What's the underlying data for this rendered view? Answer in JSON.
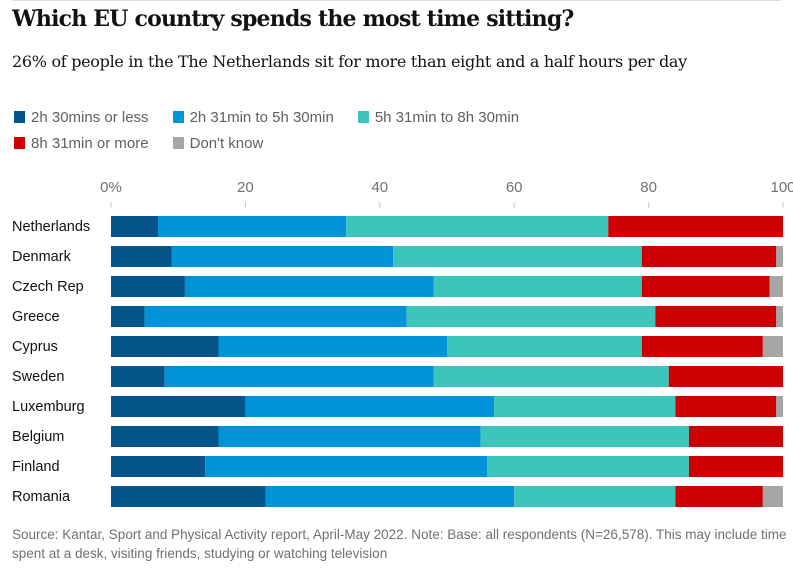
{
  "header": {
    "title": "Which EU country spends the most time sitting?",
    "subtitle": "26% of people in the The Netherlands sit for more than eight and a half hours per day"
  },
  "footer": {
    "source": "Source: Kantar, Sport and Physical Activity report, April-May 2022. Note: Base: all respondents (N=26,578). This may include time spent at a desk, visiting friends, studying or watching television"
  },
  "chart_data": {
    "type": "bar",
    "orientation": "horizontal",
    "stacked": true,
    "title": "Which EU country spends the most time sitting?",
    "subtitle": "26% of people in the The Netherlands sit for more than eight and a half hours per day",
    "xlabel": "",
    "ylabel": "",
    "xlim": [
      0,
      100
    ],
    "x_ticks": [
      0,
      20,
      40,
      60,
      80,
      100
    ],
    "x_tick_labels": [
      "0%",
      "20",
      "40",
      "60",
      "80",
      "100"
    ],
    "grid": false,
    "legend_position": "top-left",
    "categories": [
      "Netherlands",
      "Denmark",
      "Czech Rep",
      "Greece",
      "Cyprus",
      "Sweden",
      "Luxemburg",
      "Belgium",
      "Finland",
      "Romania"
    ],
    "series": [
      {
        "name": "2h 30mins or less",
        "color": "#05558a",
        "values": [
          7,
          9,
          11,
          5,
          16,
          8,
          20,
          16,
          14,
          23
        ]
      },
      {
        "name": "2h 31min to 5h 30min",
        "color": "#0093d8",
        "values": [
          28,
          33,
          37,
          39,
          34,
          40,
          37,
          39,
          42,
          37
        ]
      },
      {
        "name": "5h 31min to 8h 30min",
        "color": "#3cc5bb",
        "values": [
          39,
          37,
          31,
          37,
          29,
          35,
          27,
          31,
          30,
          24
        ]
      },
      {
        "name": "8h 31min or more",
        "color": "#cc0000",
        "values": [
          26,
          20,
          19,
          18,
          18,
          17,
          15,
          14,
          14,
          13
        ]
      },
      {
        "name": "Don't know",
        "color": "#a6a6a6",
        "values": [
          0,
          1,
          2,
          1,
          3,
          0,
          1,
          0,
          0,
          3
        ]
      }
    ],
    "source": "Source: Kantar, Sport and Physical Activity report, April-May 2022. Note: Base: all respondents (N=26,578). This may include time spent at a desk, visiting friends, studying or watching television"
  }
}
